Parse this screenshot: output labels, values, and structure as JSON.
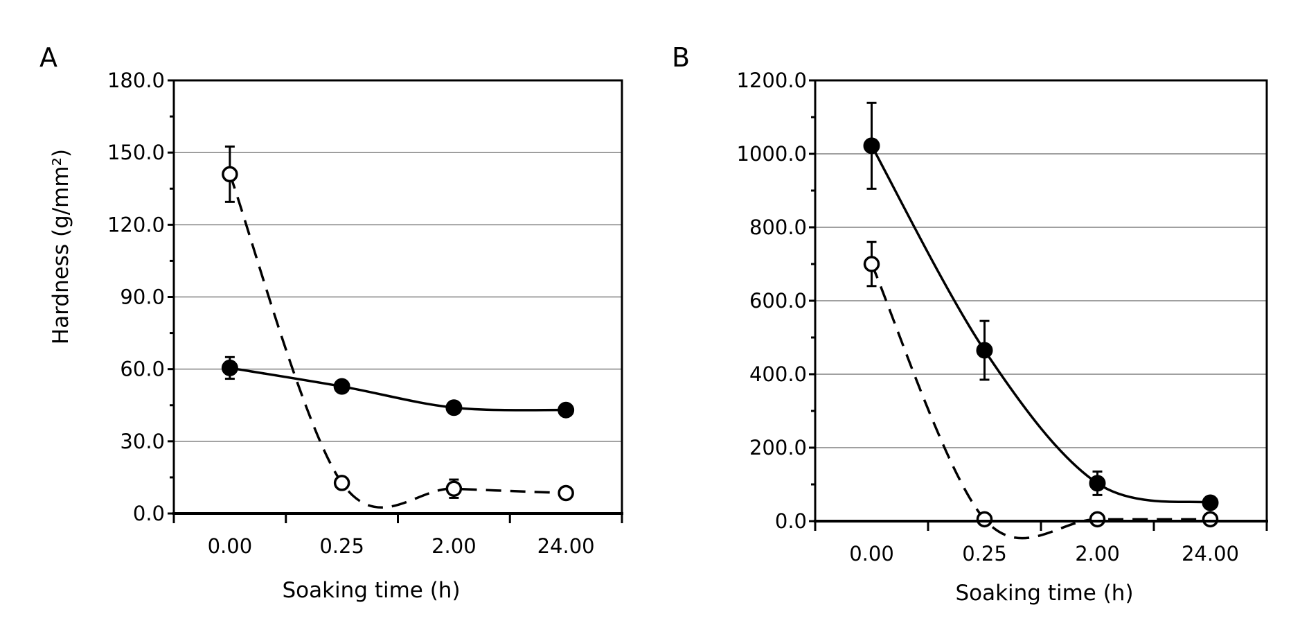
{
  "figure": {
    "background": "#ffffff",
    "ink_color": "#000000",
    "grid_color": "#808080"
  },
  "chart_data": [
    {
      "panel": "A",
      "type": "line",
      "xlabel": "Soaking time (h)",
      "ylabel": "Hardness (g/mm²)",
      "categories": [
        "0.00",
        "0.25",
        "2.00",
        "24.00"
      ],
      "ylim": [
        0,
        180
      ],
      "yticks": [
        "0.0",
        "30.0",
        "60.0",
        "90.0",
        "120.0",
        "150.0",
        "180.0"
      ],
      "grid": true,
      "legend": "none",
      "series": [
        {
          "marker": "filled-circle",
          "line_style": "solid",
          "smoothed": true,
          "values": [
            60.5,
            52.8,
            44.0,
            43.0
          ],
          "error": [
            4.5,
            0,
            0,
            0
          ]
        },
        {
          "marker": "open-circle",
          "line_style": "dashed",
          "smoothed": true,
          "values": [
            141.0,
            12.7,
            10.3,
            8.5
          ],
          "error": [
            11.5,
            0,
            3.8,
            0
          ]
        }
      ]
    },
    {
      "panel": "B",
      "type": "line",
      "xlabel": "Soaking time (h)",
      "ylabel": "",
      "categories": [
        "0.00",
        "0.25",
        "2.00",
        "24.00"
      ],
      "ylim": [
        0,
        1200
      ],
      "yticks": [
        "0.0",
        "200.0",
        "400.0",
        "600.0",
        "800.0",
        "1000.0",
        "1200.0"
      ],
      "grid": true,
      "legend": "none",
      "series": [
        {
          "marker": "filled-circle",
          "line_style": "solid",
          "smoothed": true,
          "values": [
            1022,
            465,
            103,
            50
          ],
          "error": [
            117,
            80,
            32,
            0
          ]
        },
        {
          "marker": "open-circle",
          "line_style": "dashed",
          "smoothed": true,
          "values": [
            700,
            5,
            5,
            5
          ],
          "error": [
            60,
            0,
            0,
            0
          ]
        }
      ]
    }
  ]
}
